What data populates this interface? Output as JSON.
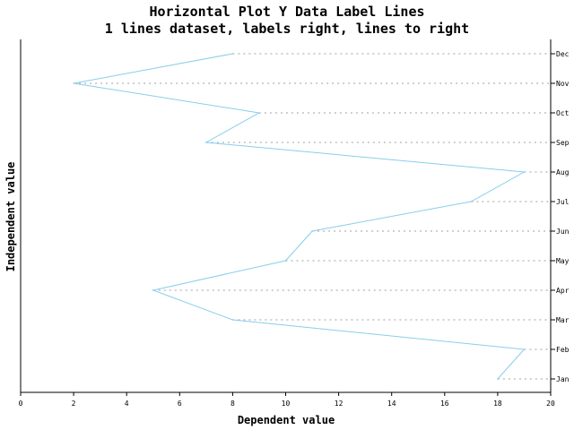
{
  "chart_data": {
    "type": "line",
    "orientation": "horizontal",
    "title": "Horizontal Plot Y Data Label Lines",
    "subtitle": "1 lines dataset, labels right, lines to right",
    "xlabel": "Dependent value",
    "ylabel": "Independent value",
    "xlim": [
      0,
      20
    ],
    "x_ticks": [
      "0",
      "2",
      "4",
      "6",
      "8",
      "10",
      "12",
      "14",
      "16",
      "18",
      "20"
    ],
    "categories": [
      "Jan",
      "Feb",
      "Mar",
      "Apr",
      "May",
      "Jun",
      "Jul",
      "Aug",
      "Sep",
      "Oct",
      "Nov",
      "Dec"
    ],
    "category_label_position": "right",
    "data_label_lines": "dotted lines to the right",
    "series": [
      {
        "values": [
          18,
          19,
          8,
          5,
          10,
          11,
          17,
          19,
          7,
          9,
          2,
          8
        ],
        "color": "#87ceeb"
      }
    ],
    "colors": {
      "axis": "#000000",
      "guide_line": "#a0a0a0",
      "background": "#ffffff"
    }
  }
}
